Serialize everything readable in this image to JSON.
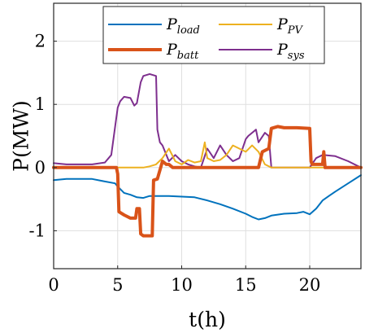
{
  "chart_data": {
    "type": "line",
    "xlabel": "t(h)",
    "ylabel": "P(MW)",
    "xlim": [
      0,
      24
    ],
    "ylim": [
      -1.6,
      2.6
    ],
    "xticks": [
      "0",
      "5",
      "10",
      "15",
      "20"
    ],
    "yticks": [
      "2",
      "1",
      "0",
      "-1"
    ],
    "grid": true,
    "legend_placement": "top",
    "series": [
      {
        "name": "P_load",
        "legend_main": "P",
        "legend_sub": "load",
        "color": "#0072BD",
        "x": [
          0,
          1,
          2,
          3,
          4,
          4.8,
          5.0,
          5.5,
          6.0,
          6.5,
          7.0,
          7.5,
          8.0,
          9.0,
          10.0,
          11.0,
          12.0,
          13.0,
          14.0,
          15.0,
          15.5,
          16.0,
          16.5,
          17.0,
          18.0,
          19.0,
          19.5,
          20.0,
          20.5,
          21.0,
          21.5,
          22.0,
          23.0,
          24.0
        ],
        "values": [
          -0.2,
          -0.18,
          -0.18,
          -0.18,
          -0.22,
          -0.25,
          -0.3,
          -0.4,
          -0.43,
          -0.47,
          -0.48,
          -0.45,
          -0.45,
          -0.45,
          -0.46,
          -0.47,
          -0.52,
          -0.58,
          -0.65,
          -0.73,
          -0.78,
          -0.82,
          -0.8,
          -0.76,
          -0.73,
          -0.72,
          -0.7,
          -0.74,
          -0.65,
          -0.52,
          -0.45,
          -0.38,
          -0.25,
          -0.12
        ]
      },
      {
        "name": "P_PV",
        "legend_main": "P",
        "legend_sub": "PV",
        "color": "#EDB120",
        "x": [
          0,
          5,
          6,
          7,
          7.5,
          8,
          8.5,
          9,
          9.5,
          10,
          10.5,
          11,
          11.5,
          11.8,
          12,
          12.5,
          13,
          13.5,
          14,
          14.5,
          15,
          15.5,
          16,
          16.5,
          17,
          18,
          20,
          24
        ],
        "values": [
          0,
          0,
          0,
          0,
          0.02,
          0.05,
          0.15,
          0.3,
          0.1,
          0.05,
          0.12,
          0.08,
          0.1,
          0.4,
          0.15,
          0.1,
          0.12,
          0.2,
          0.35,
          0.3,
          0.25,
          0.35,
          0.25,
          0.05,
          0,
          0,
          0,
          0
        ]
      },
      {
        "name": "P_batt",
        "legend_main": "P",
        "legend_sub": "batt",
        "color": "#D95319",
        "x": [
          0,
          4.9,
          5.0,
          5.1,
          5.5,
          6.0,
          6.4,
          6.5,
          6.7,
          6.8,
          7.0,
          7.5,
          7.7,
          7.8,
          8.1,
          8.5,
          8.8,
          9.0,
          9.3,
          10,
          12,
          13,
          14,
          16,
          16.3,
          16.8,
          17.0,
          17.5,
          18,
          19,
          20,
          20.1,
          20.2,
          20.5,
          21.0,
          21.1,
          21.2,
          22,
          23,
          24
        ],
        "values": [
          0,
          0,
          -0.1,
          -0.7,
          -0.75,
          -0.8,
          -0.8,
          -0.65,
          -0.65,
          -1.05,
          -1.08,
          -1.08,
          -1.08,
          -0.2,
          -0.18,
          0.1,
          0.05,
          0.05,
          0,
          0,
          0,
          0,
          0,
          0,
          0.25,
          0.3,
          0.62,
          0.65,
          0.63,
          0.63,
          0.62,
          0.1,
          0.05,
          0.05,
          0.05,
          0.25,
          0,
          0,
          0,
          0
        ]
      },
      {
        "name": "P_sys",
        "legend_main": "P",
        "legend_sub": "sys",
        "color": "#7E2F8E",
        "x": [
          0,
          1,
          2,
          3,
          4,
          4.5,
          5.0,
          5.2,
          5.5,
          6.0,
          6.3,
          6.5,
          6.8,
          7.0,
          7.5,
          8.0,
          8.1,
          8.3,
          8.5,
          9.0,
          9.5,
          10,
          10.5,
          11,
          11.5,
          12,
          12.5,
          13,
          13.5,
          14,
          14.5,
          15,
          15.2,
          15.5,
          15.8,
          16,
          16.5,
          16.8,
          17.0,
          17.5,
          18,
          19,
          20,
          20.5,
          21,
          22,
          23,
          24
        ],
        "values": [
          0.07,
          0.05,
          0.05,
          0.05,
          0.08,
          0.2,
          0.95,
          1.05,
          1.12,
          1.1,
          0.98,
          1.02,
          1.35,
          1.45,
          1.48,
          1.45,
          0.6,
          0.4,
          0.35,
          0.1,
          0.2,
          0.1,
          0.05,
          0.02,
          0.0,
          0.3,
          0.15,
          0.35,
          0.2,
          0.1,
          0.15,
          0.45,
          0.5,
          0.55,
          0.6,
          0.4,
          0.55,
          0.5,
          0.0,
          0.0,
          0.0,
          0.0,
          0.0,
          0.15,
          0.2,
          0.18,
          0.1,
          0.0
        ]
      }
    ]
  }
}
